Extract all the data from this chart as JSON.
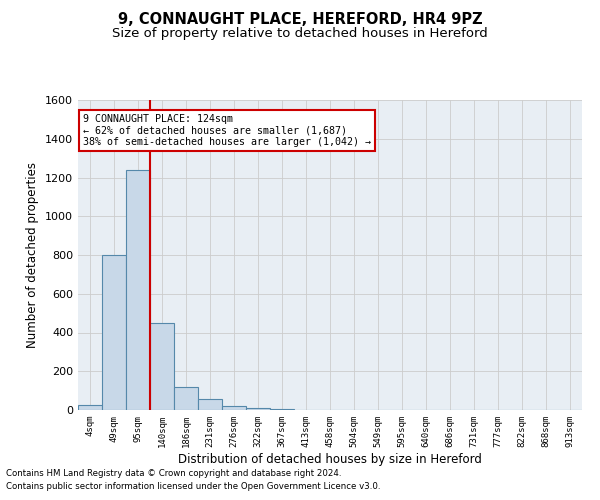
{
  "title": "9, CONNAUGHT PLACE, HEREFORD, HR4 9PZ",
  "subtitle": "Size of property relative to detached houses in Hereford",
  "xlabel": "Distribution of detached houses by size in Hereford",
  "ylabel": "Number of detached properties",
  "categories": [
    "4sqm",
    "49sqm",
    "95sqm",
    "140sqm",
    "186sqm",
    "231sqm",
    "276sqm",
    "322sqm",
    "367sqm",
    "413sqm",
    "458sqm",
    "504sqm",
    "549sqm",
    "595sqm",
    "640sqm",
    "686sqm",
    "731sqm",
    "777sqm",
    "822sqm",
    "868sqm",
    "913sqm"
  ],
  "values": [
    25,
    800,
    1240,
    450,
    120,
    55,
    20,
    10,
    5,
    0,
    0,
    0,
    0,
    0,
    0,
    0,
    0,
    0,
    0,
    0,
    0
  ],
  "bar_color": "#c8d8e8",
  "bar_edge_color": "#5588aa",
  "vline_x": 2.5,
  "vline_color": "#cc0000",
  "annotation_line1": "9 CONNAUGHT PLACE: 124sqm",
  "annotation_line2": "← 62% of detached houses are smaller (1,687)",
  "annotation_line3": "38% of semi-detached houses are larger (1,042) →",
  "annotation_box_color": "#ffffff",
  "annotation_box_edge_color": "#cc0000",
  "ylim": [
    0,
    1600
  ],
  "yticks": [
    0,
    200,
    400,
    600,
    800,
    1000,
    1200,
    1400,
    1600
  ],
  "grid_color": "#cccccc",
  "plot_bg_color": "#e8eef4",
  "footer_line1": "Contains HM Land Registry data © Crown copyright and database right 2024.",
  "footer_line2": "Contains public sector information licensed under the Open Government Licence v3.0.",
  "title_fontsize": 10.5,
  "subtitle_fontsize": 9.5,
  "xlabel_fontsize": 8.5,
  "ylabel_fontsize": 8.5
}
